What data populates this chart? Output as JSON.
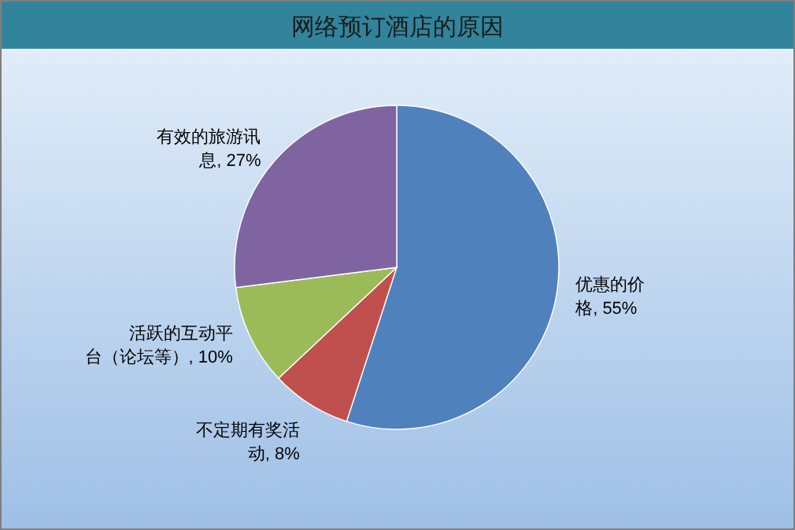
{
  "chart_data": {
    "type": "pie",
    "title": "网络预订酒店的原因",
    "categories": [
      "优惠的价格",
      "不定期有奖活动",
      "活跃的互动平台（论坛等）",
      "有效的旅游讯息"
    ],
    "values": [
      55,
      8,
      10,
      27
    ],
    "colors": [
      "#4f81bd",
      "#c0504d",
      "#9bbb59",
      "#8064a2"
    ],
    "value_labels": [
      ", 55%",
      ", 8%",
      ", 10%",
      ", 27%"
    ],
    "legend": false
  }
}
